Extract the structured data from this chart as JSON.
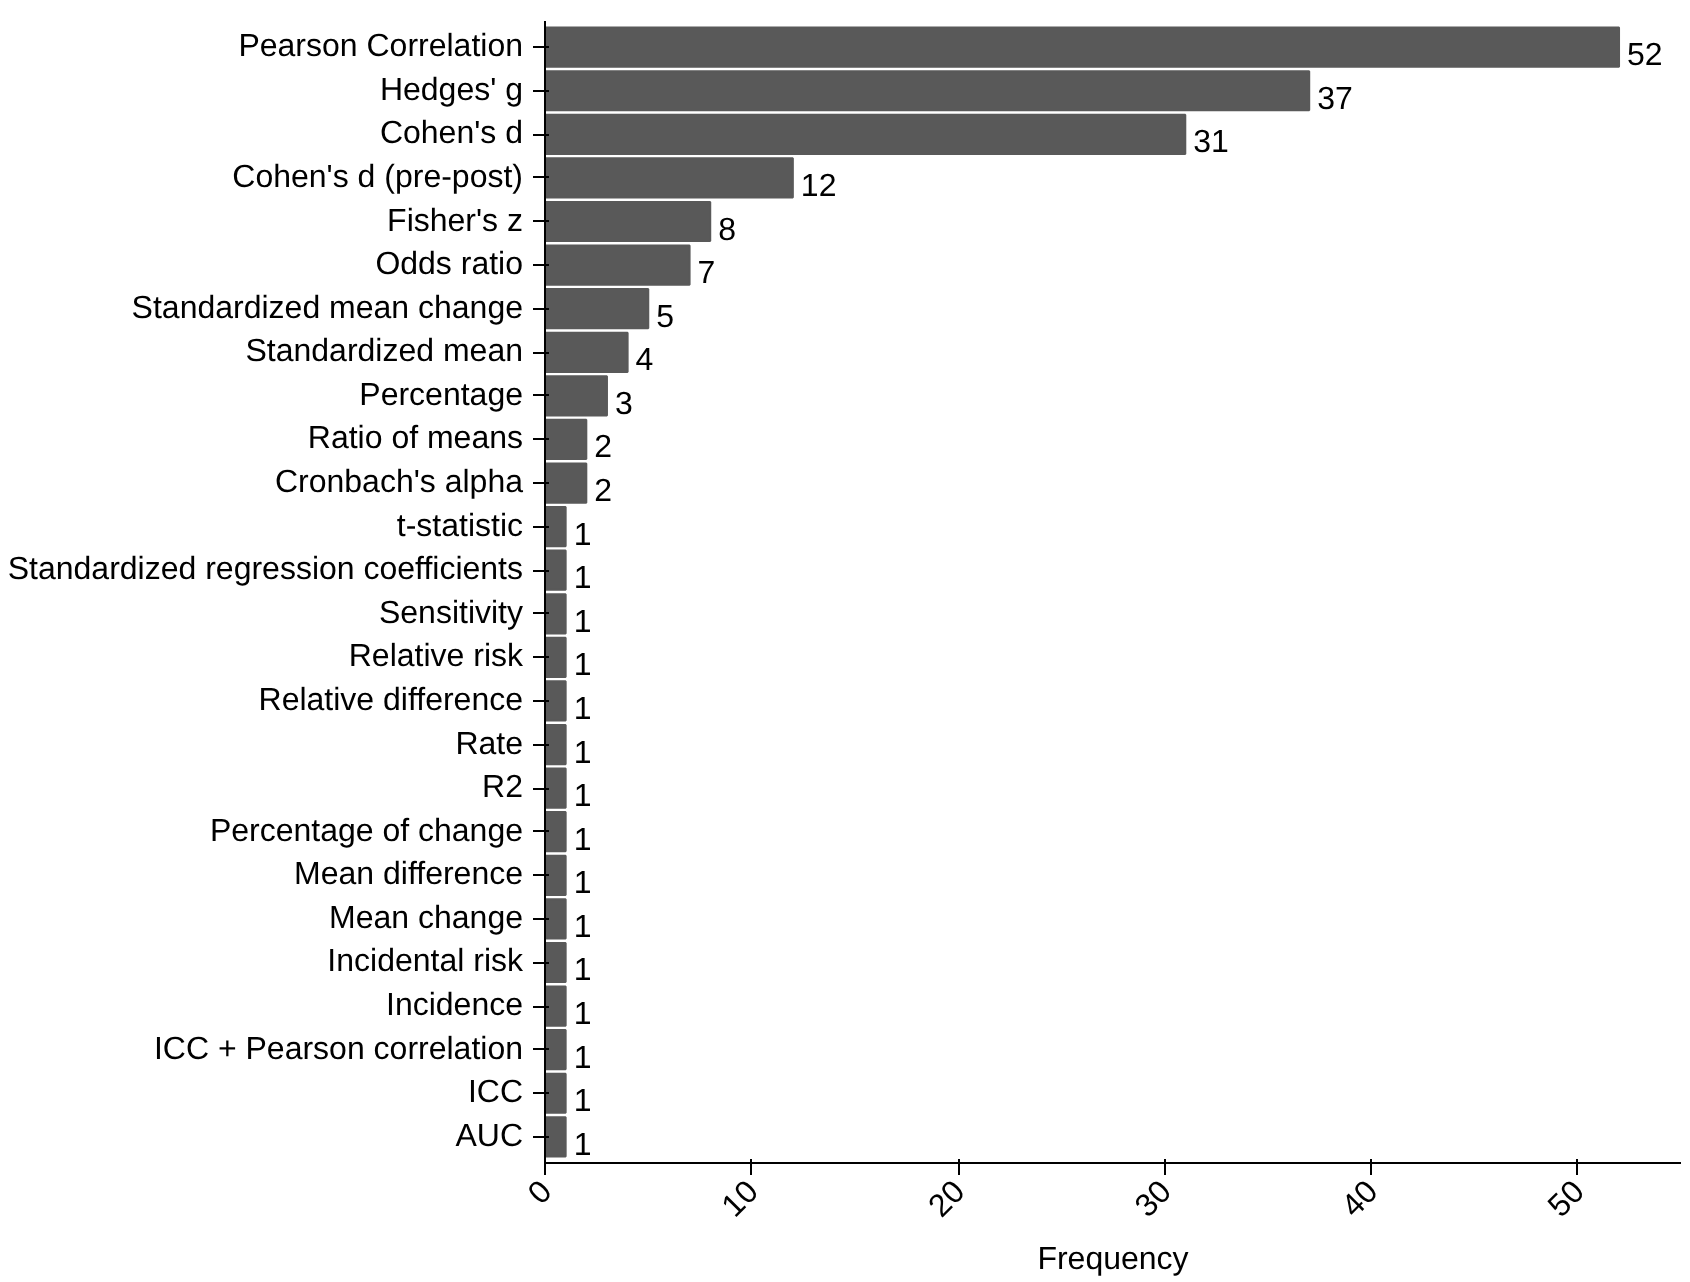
{
  "chart_data": {
    "type": "bar",
    "orientation": "horizontal",
    "xlabel": "Frequency",
    "categories": [
      "Pearson Correlation",
      "Hedges' g",
      "Cohen's d",
      "Cohen's d (pre-post)",
      "Fisher's z",
      "Odds ratio",
      "Standardized mean change",
      "Standardized mean",
      "Percentage",
      "Ratio of means",
      "Cronbach's alpha",
      "t-statistic",
      "Standardized regression coefficients",
      "Sensitivity",
      "Relative risk",
      "Relative difference",
      "Rate",
      "R2",
      "Percentage of change",
      "Mean difference",
      "Mean change",
      "Incidental risk",
      "Incidence",
      "ICC + Pearson correlation",
      "ICC",
      "AUC"
    ],
    "values": [
      52,
      37,
      31,
      12,
      8,
      7,
      5,
      4,
      3,
      2,
      2,
      1,
      1,
      1,
      1,
      1,
      1,
      1,
      1,
      1,
      1,
      1,
      1,
      1,
      1,
      1
    ],
    "color": "#595959",
    "xlim": [
      0,
      55
    ],
    "xticks": [
      0,
      10,
      20,
      30,
      40,
      50
    ],
    "data_labels": true,
    "grid": false
  }
}
